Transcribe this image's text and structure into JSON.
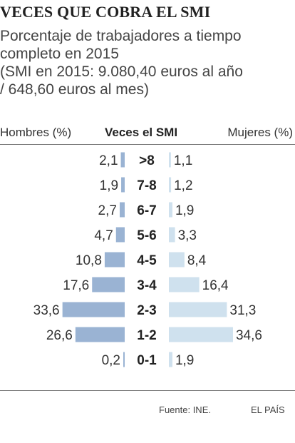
{
  "title": "VECES QUE COBRA EL SMI",
  "subtitle_lines": [
    "Porcentaje de trabajadores a tiempo",
    "completo en 2015",
    "(SMI en 2015: 9.080,40 euros al año",
    "/ 648,60 euros al mes)"
  ],
  "header": {
    "left": "Hombres (%)",
    "middle": "Veces el SMI",
    "right": "Mujeres (%)"
  },
  "colors": {
    "men": "#9ab3d3",
    "women": "#cfe1ee"
  },
  "chart_data": {
    "type": "bar",
    "layout": "population-pyramid",
    "categories": [
      ">8",
      "7-8",
      "6-7",
      "5-6",
      "4-5",
      "3-4",
      "2-3",
      "1-2",
      "0-1"
    ],
    "series": [
      {
        "name": "Hombres (%)",
        "values": [
          2.1,
          1.9,
          2.7,
          4.7,
          10.8,
          17.6,
          33.6,
          26.6,
          0.2
        ]
      },
      {
        "name": "Mujeres (%)",
        "values": [
          1.1,
          1.2,
          1.9,
          3.3,
          8.4,
          16.4,
          31.3,
          34.6,
          1.9
        ]
      }
    ],
    "value_labels": {
      "Hombres (%)": [
        "2,1",
        "1,9",
        "2,7",
        "4,7",
        "10,8",
        "17,6",
        "33,6",
        "26,6",
        "0,2"
      ],
      "Mujeres (%)": [
        "1,1",
        "1,2",
        "1,9",
        "3,3",
        "8,4",
        "16,4",
        "31,3",
        "34,6",
        "1,9"
      ]
    },
    "xlabel": "",
    "ylabel": "Veces el SMI",
    "grid": false
  },
  "footer": {
    "source": "Fuente: INE.",
    "brand": "EL PAÍS"
  }
}
